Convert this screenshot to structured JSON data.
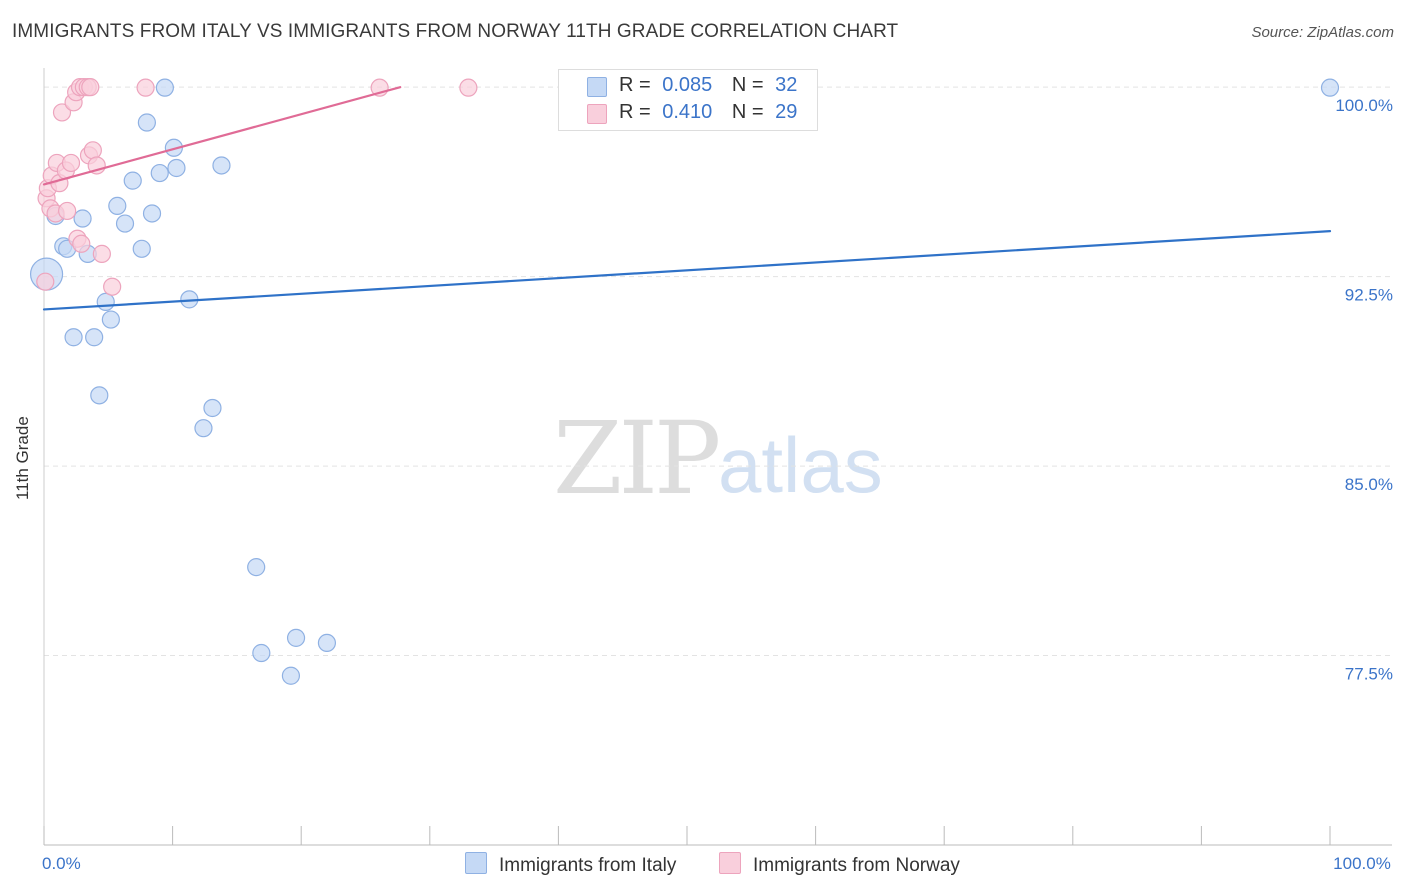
{
  "title": "IMMIGRANTS FROM ITALY VS IMMIGRANTS FROM NORWAY 11TH GRADE CORRELATION CHART",
  "source": "Source: ZipAtlas.com",
  "watermark": {
    "zip": "ZIP",
    "atlas": "atlas"
  },
  "legend": {
    "italy": {
      "r_label": "R =",
      "r_value": "0.085",
      "n_label": "N =",
      "n_value": "32"
    },
    "norway": {
      "r_label": "R =",
      "r_value": "0.410",
      "n_label": "N =",
      "n_value": "29"
    }
  },
  "colors": {
    "italy_fill": "#c5d9f5",
    "italy_stroke": "#8fb1e3",
    "italy_line": "#2f72c8",
    "norway_fill": "#f9cfdc",
    "norway_stroke": "#eda4bd",
    "norway_line": "#e06b96",
    "tick_label": "#3b74c9",
    "grid": "#e3e3e3"
  },
  "chart_data": {
    "type": "scatter",
    "xlabel": "",
    "ylabel": "11th Grade",
    "xlim": [
      0,
      100
    ],
    "ylim": [
      70.0,
      100.6
    ],
    "x_tick_labels": [
      {
        "value": 0,
        "label": "0.0%"
      },
      {
        "value": 100,
        "label": "100.0%"
      }
    ],
    "y_ticks": [
      {
        "value": 100.0,
        "label": "100.0%"
      },
      {
        "value": 92.5,
        "label": "92.5%"
      },
      {
        "value": 85.0,
        "label": "85.0%"
      },
      {
        "value": 77.5,
        "label": "77.5%"
      }
    ],
    "series": [
      {
        "name": "Immigrants from Italy",
        "points": [
          [
            0.2,
            92.6,
            "large"
          ],
          [
            0.9,
            94.9
          ],
          [
            1.5,
            93.7
          ],
          [
            1.8,
            93.6
          ],
          [
            3.0,
            94.8
          ],
          [
            3.4,
            93.4
          ],
          [
            2.3,
            90.1
          ],
          [
            3.9,
            90.1
          ],
          [
            4.8,
            91.5
          ],
          [
            5.2,
            90.8
          ],
          [
            4.3,
            87.8
          ],
          [
            5.7,
            95.3
          ],
          [
            6.3,
            94.6
          ],
          [
            6.9,
            96.3
          ],
          [
            7.6,
            93.6
          ],
          [
            8.0,
            98.6
          ],
          [
            8.4,
            95.0
          ],
          [
            9.0,
            96.6
          ],
          [
            9.4,
            99.98
          ],
          [
            10.1,
            97.6
          ],
          [
            10.3,
            96.8
          ],
          [
            11.3,
            91.6
          ],
          [
            12.4,
            86.5
          ],
          [
            13.1,
            87.3
          ],
          [
            13.8,
            96.9
          ],
          [
            16.5,
            81.0
          ],
          [
            16.9,
            77.6
          ],
          [
            19.2,
            76.7
          ],
          [
            19.6,
            78.2
          ],
          [
            22.0,
            78.0
          ],
          [
            100.0,
            99.98
          ]
        ]
      },
      {
        "name": "Immigrants from Norway",
        "points": [
          [
            0.1,
            92.3
          ],
          [
            0.2,
            95.6
          ],
          [
            0.3,
            96.0
          ],
          [
            0.5,
            95.2
          ],
          [
            0.6,
            96.5
          ],
          [
            0.9,
            95.0
          ],
          [
            1.0,
            97.0
          ],
          [
            1.2,
            96.2
          ],
          [
            1.4,
            99.0
          ],
          [
            1.7,
            96.7
          ],
          [
            1.8,
            95.1
          ],
          [
            2.1,
            97.0
          ],
          [
            2.3,
            99.4
          ],
          [
            2.5,
            99.8
          ],
          [
            2.6,
            94.0
          ],
          [
            2.8,
            100.0
          ],
          [
            2.9,
            93.8
          ],
          [
            3.1,
            100.0
          ],
          [
            3.4,
            100.0
          ],
          [
            3.5,
            97.3
          ],
          [
            3.6,
            100.0
          ],
          [
            3.8,
            97.5
          ],
          [
            4.1,
            96.9
          ],
          [
            4.5,
            93.4
          ],
          [
            5.3,
            92.1
          ],
          [
            7.9,
            99.98
          ],
          [
            26.1,
            99.98
          ],
          [
            33.0,
            99.98
          ]
        ]
      }
    ],
    "trendlines": [
      {
        "series": "Immigrants from Italy",
        "x": [
          0,
          100
        ],
        "y": [
          91.2,
          94.3
        ]
      },
      {
        "series": "Immigrants from Norway",
        "x": [
          0,
          27.7
        ],
        "y": [
          96.15,
          100.0
        ]
      }
    ]
  }
}
